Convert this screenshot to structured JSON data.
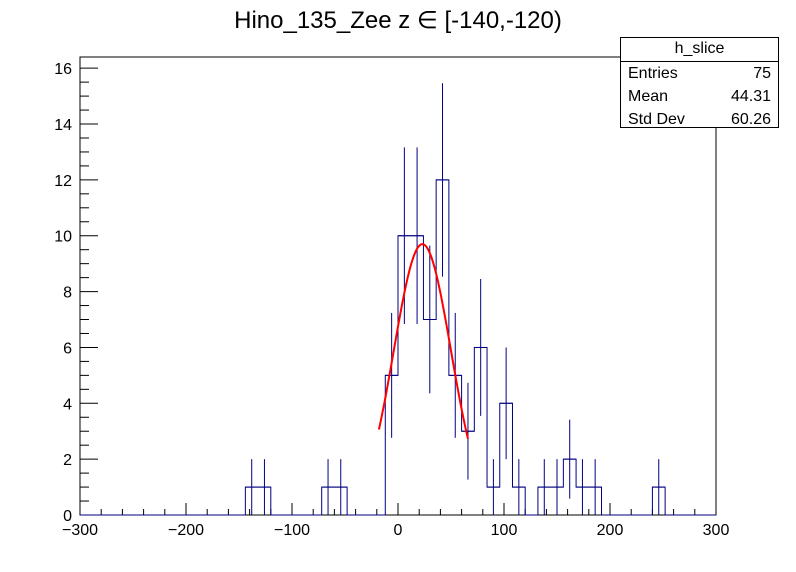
{
  "title": "Hino_135_Zee z  ∈ [-140,-120)",
  "stats": {
    "name": "h_slice",
    "rows": [
      {
        "label": "Entries",
        "value": "75"
      },
      {
        "label": "Mean",
        "value": "44.31"
      },
      {
        "label": "Std Dev",
        "value": "60.26"
      }
    ]
  },
  "colors": {
    "histogram": "#000080",
    "fit": "#ff0000",
    "axis": "#000000"
  },
  "chart_data": {
    "type": "histogram",
    "title": "Hino_135_Zee z  ∈ [-140,-120)",
    "xlabel": "",
    "ylabel": "",
    "xlim": [
      -300,
      300
    ],
    "ylim": [
      0,
      16.4
    ],
    "x_ticks": [
      -300,
      -200,
      -100,
      0,
      100,
      200,
      300
    ],
    "y_ticks": [
      0,
      2,
      4,
      6,
      8,
      10,
      12,
      14,
      16
    ],
    "bin_width": 12,
    "bins": [
      {
        "x0": -144,
        "count": 1
      },
      {
        "x0": -132,
        "count": 1
      },
      {
        "x0": -72,
        "count": 1
      },
      {
        "x0": -60,
        "count": 1
      },
      {
        "x0": -12,
        "count": 5
      },
      {
        "x0": 0,
        "count": 10
      },
      {
        "x0": 12,
        "count": 10
      },
      {
        "x0": 24,
        "count": 7
      },
      {
        "x0": 36,
        "count": 12
      },
      {
        "x0": 48,
        "count": 5
      },
      {
        "x0": 60,
        "count": 3
      },
      {
        "x0": 72,
        "count": 6
      },
      {
        "x0": 84,
        "count": 1
      },
      {
        "x0": 96,
        "count": 4
      },
      {
        "x0": 108,
        "count": 1
      },
      {
        "x0": 132,
        "count": 1
      },
      {
        "x0": 144,
        "count": 1
      },
      {
        "x0": 156,
        "count": 2
      },
      {
        "x0": 168,
        "count": 1
      },
      {
        "x0": 180,
        "count": 1
      },
      {
        "x0": 240,
        "count": 1
      }
    ],
    "fit": {
      "function": "gaussian",
      "amplitude": 9.7,
      "mean": 23,
      "sigma": 27,
      "range": [
        -18,
        66
      ]
    }
  }
}
